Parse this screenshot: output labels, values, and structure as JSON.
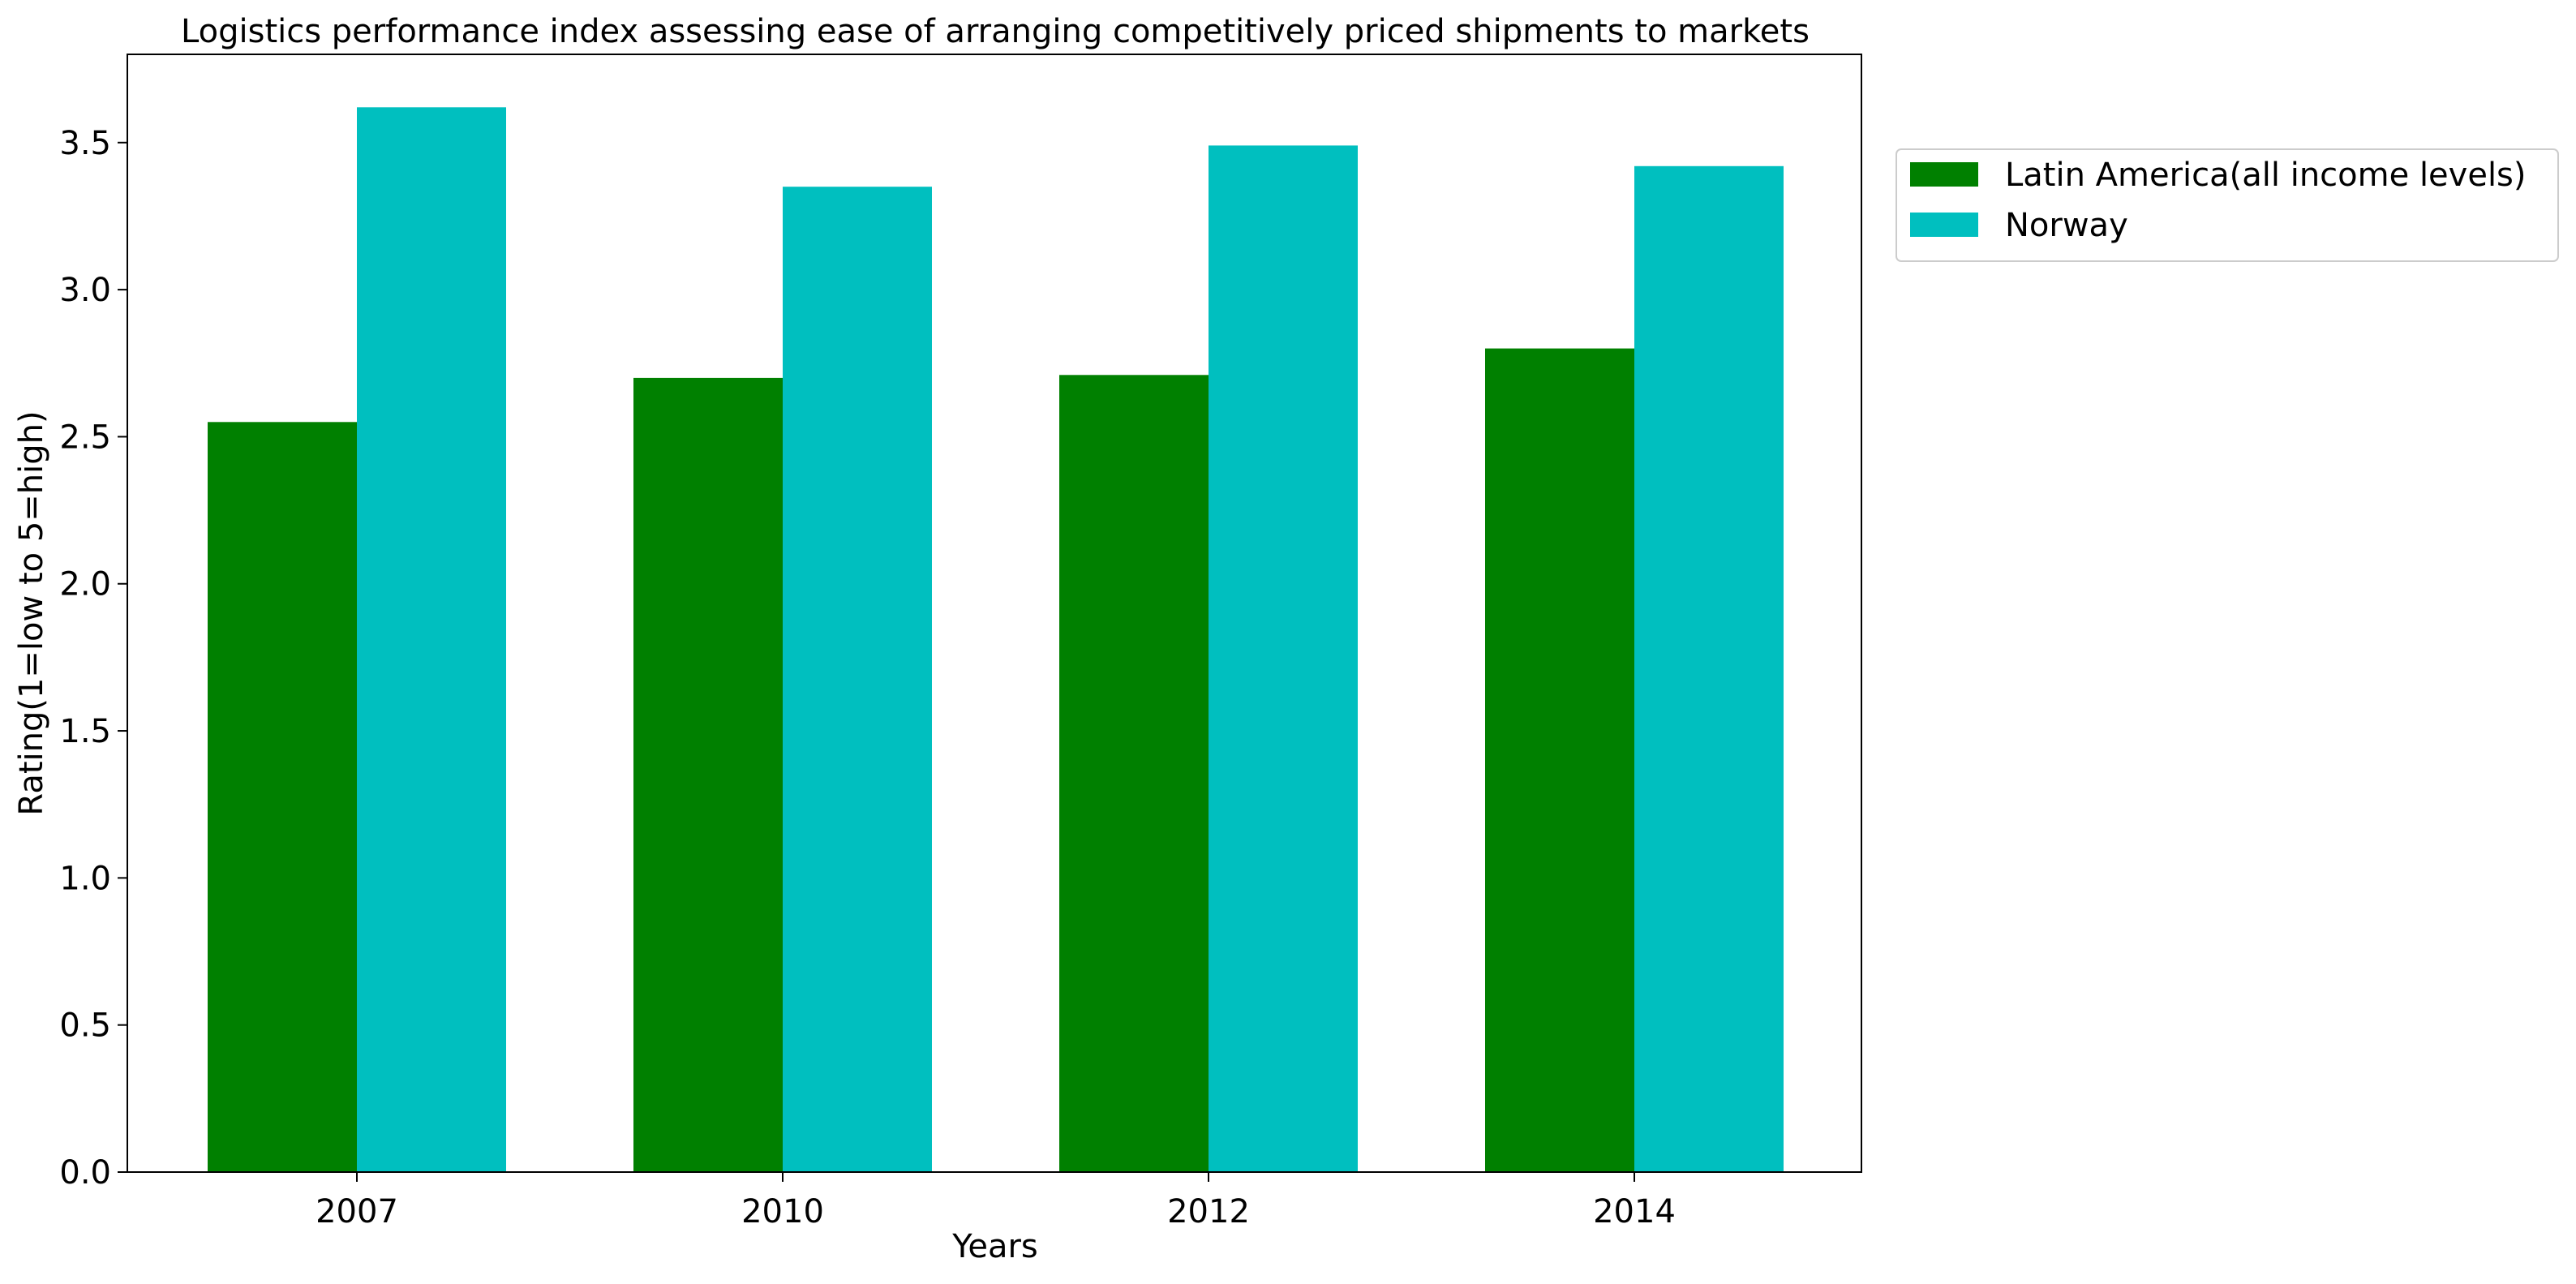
{
  "chart_data": {
    "type": "bar",
    "title": "Logistics performance index assessing ease of arranging competitively priced shipments to markets",
    "xlabel": "Years",
    "ylabel": "Rating(1=low to 5=high)",
    "categories": [
      "2007",
      "2010",
      "2012",
      "2014"
    ],
    "series": [
      {
        "name": "Latin America(all income levels)",
        "color": "#008000",
        "values": [
          2.55,
          2.7,
          2.71,
          2.8
        ]
      },
      {
        "name": "Norway",
        "color": "#00bfbf",
        "values": [
          3.62,
          3.35,
          3.49,
          3.42
        ]
      }
    ],
    "ylim": [
      0,
      3.8
    ],
    "yticks": [
      "0.0",
      "0.5",
      "1.0",
      "1.5",
      "2.0",
      "2.5",
      "3.0",
      "3.5"
    ],
    "grid": false,
    "legend_position": "outside-top-right"
  }
}
